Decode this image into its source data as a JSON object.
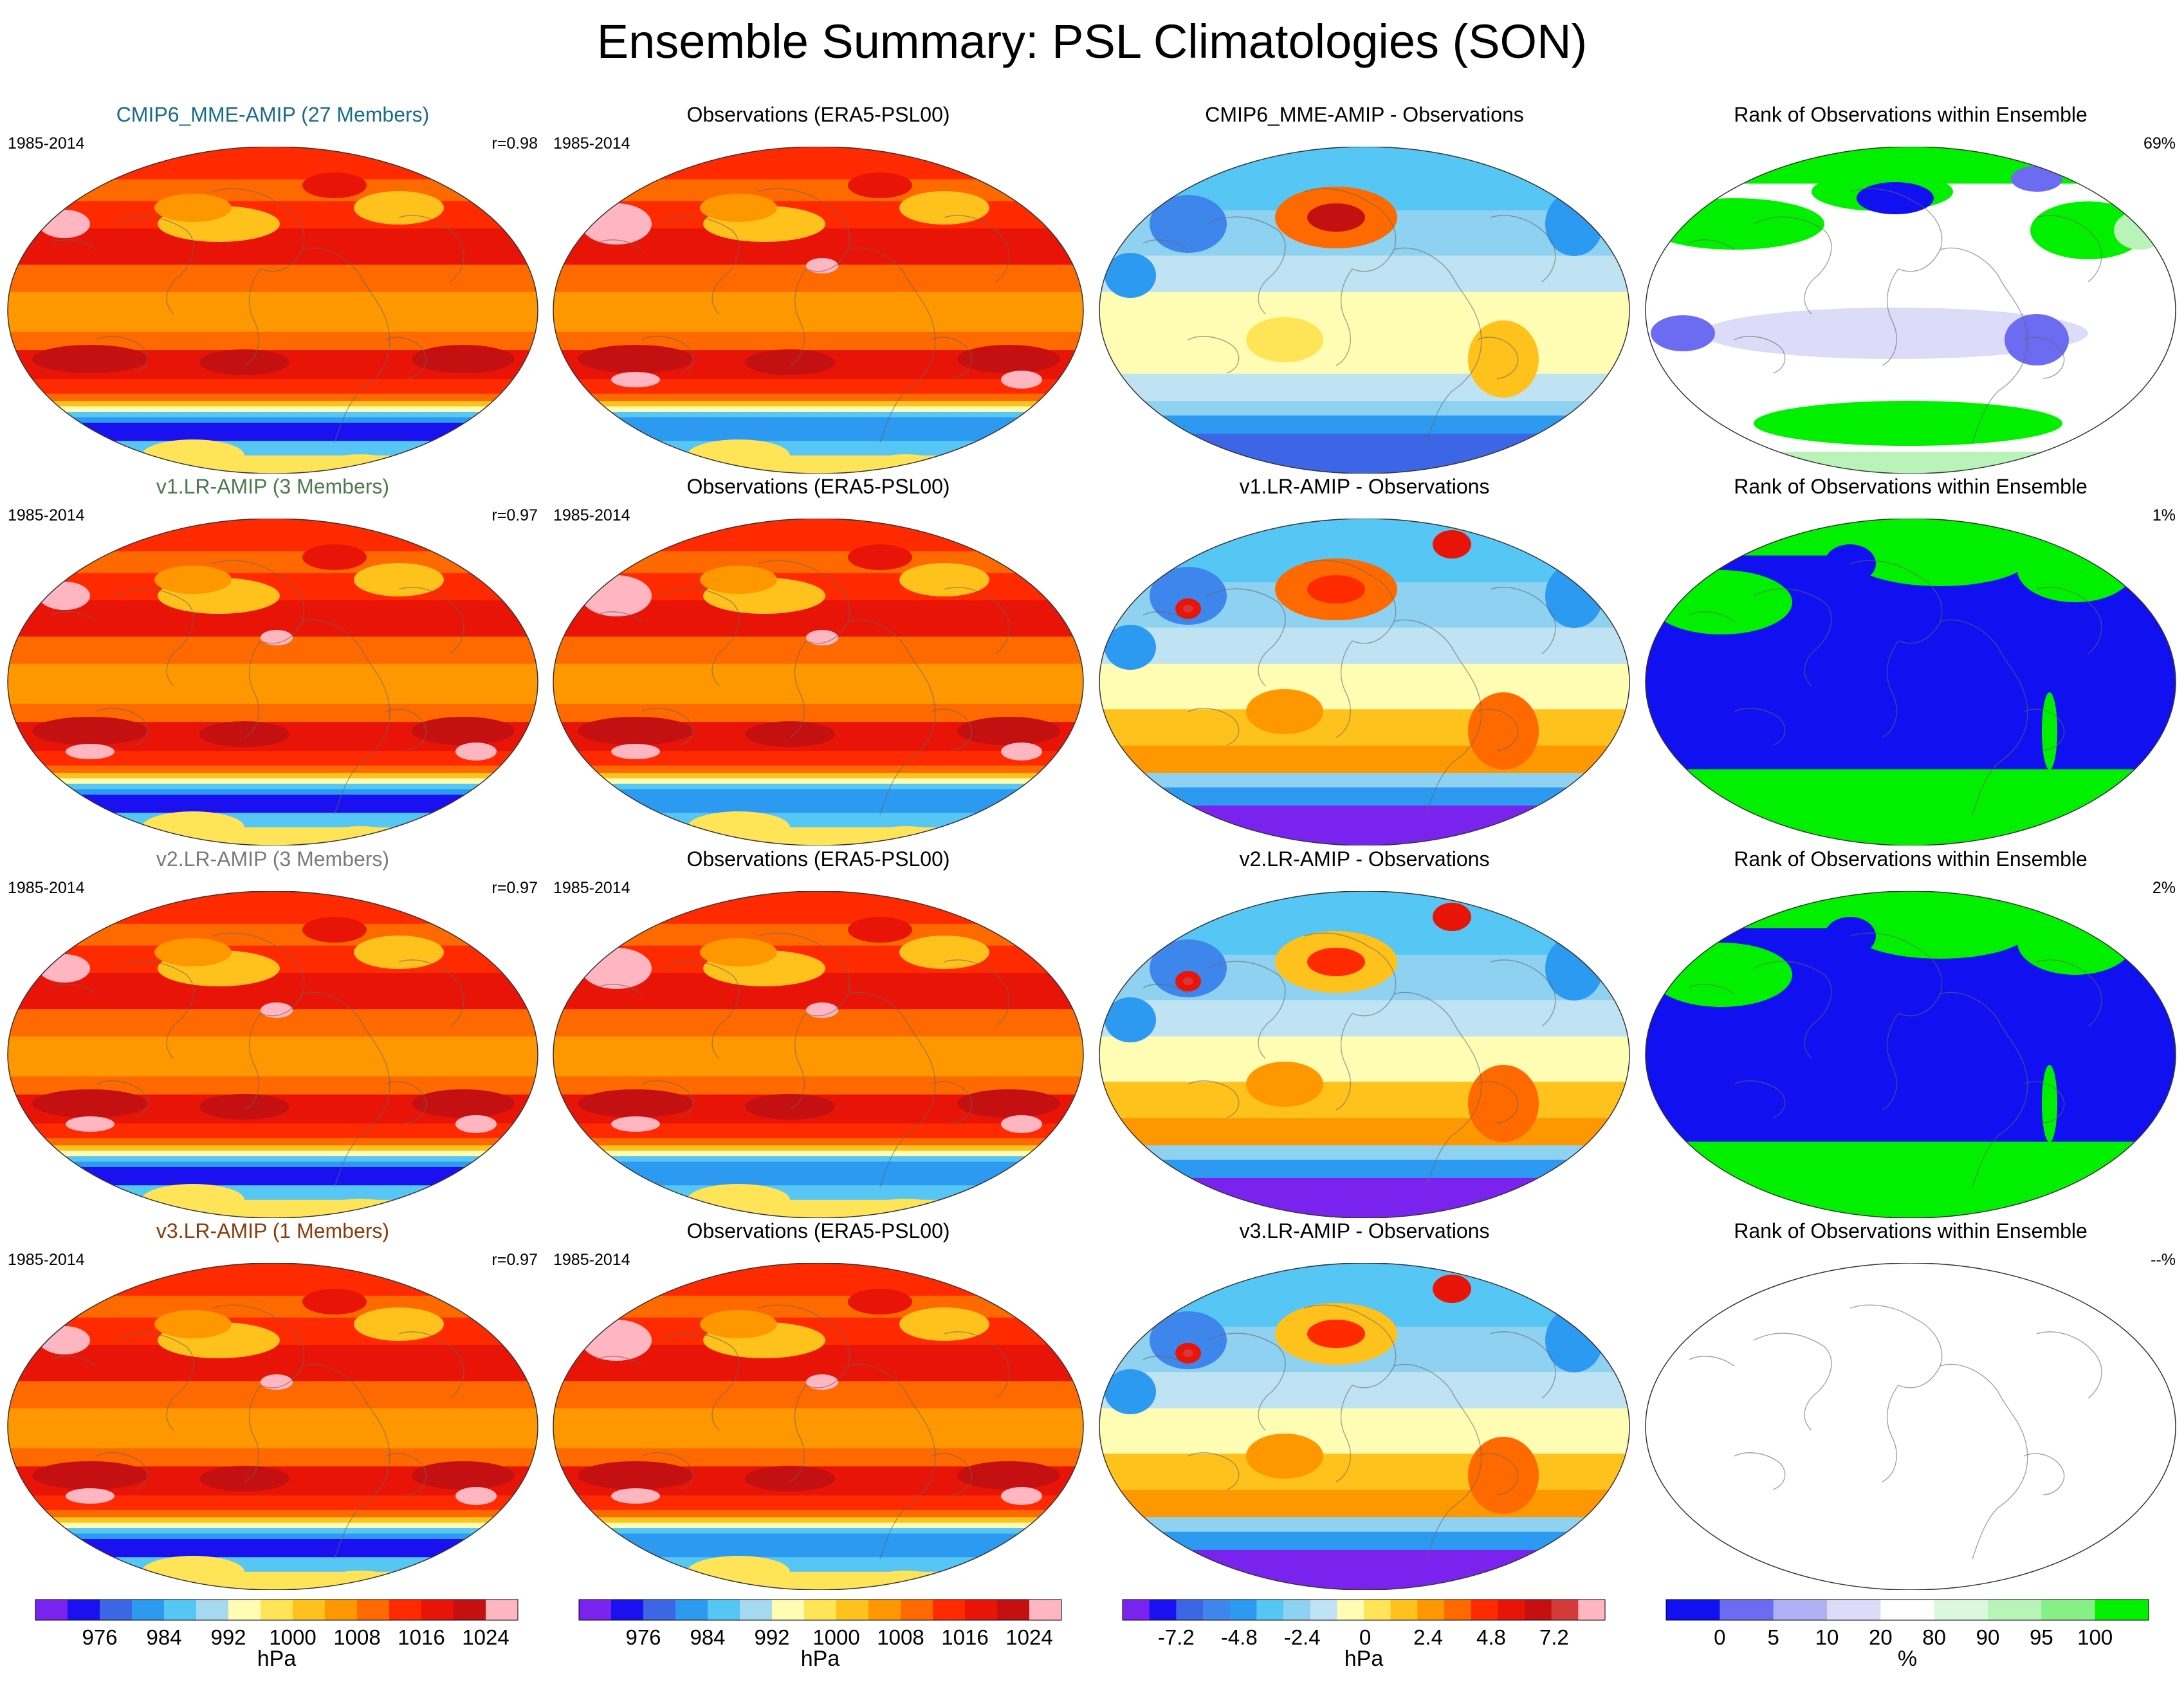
{
  "title": "Ensemble Summary: PSL Climatologies (SON)",
  "colors": {
    "psl": [
      "#7a22ee",
      "#1a10f0",
      "#3c66e6",
      "#2b9af0",
      "#56c6f5",
      "#a6d8ef",
      "#fffcb4",
      "#ffe457",
      "#ffc21c",
      "#ff9800",
      "#ff6a00",
      "#ff2a00",
      "#e81408",
      "#c41010",
      "#ffb6c1"
    ],
    "diff": [
      "#7a22ee",
      "#1a10f0",
      "#3c66e6",
      "#3f86ec",
      "#2b9af0",
      "#56c6f5",
      "#8fd1f0",
      "#bfe3f3",
      "#fffcb4",
      "#ffe457",
      "#ffc21c",
      "#ff9800",
      "#ff6a00",
      "#ff2a00",
      "#e81408",
      "#c41010",
      "#d43a3a",
      "#ffb6c1"
    ],
    "rank": [
      "#1010f0",
      "#6c6cf2",
      "#b0b0f4",
      "#dcdcf8",
      "#ffffff",
      "#dcf8dc",
      "#b8f4b8",
      "#86f086",
      "#00f000"
    ]
  },
  "rows": [
    {
      "model": {
        "title": "CMIP6_MME-AMIP (27 Members)",
        "title_color": "#1a6b8a",
        "period": "1985-2014",
        "corr": "r=0.98"
      },
      "obs": {
        "title": "Observations (ERA5-PSL00)",
        "period": "1985-2014"
      },
      "diff": {
        "title": "CMIP6_MME-AMIP - Observations"
      },
      "rank": {
        "title": "Rank of Observations within Ensemble",
        "pct": "69%",
        "fill": "mixed"
      }
    },
    {
      "model": {
        "title": "v1.LR-AMIP (3 Members)",
        "title_color": "#4c7a4c",
        "period": "1985-2014",
        "corr": "r=0.97"
      },
      "obs": {
        "title": "Observations (ERA5-PSL00)",
        "period": "1985-2014"
      },
      "diff": {
        "title": "v1.LR-AMIP - Observations"
      },
      "rank": {
        "title": "Rank of Observations within Ensemble",
        "pct": "1%",
        "fill": "blue-green"
      }
    },
    {
      "model": {
        "title": "v2.LR-AMIP (3 Members)",
        "title_color": "#7a7a7a",
        "period": "1985-2014",
        "corr": "r=0.97"
      },
      "obs": {
        "title": "Observations (ERA5-PSL00)",
        "period": "1985-2014"
      },
      "diff": {
        "title": "v2.LR-AMIP - Observations"
      },
      "rank": {
        "title": "Rank of Observations within Ensemble",
        "pct": "2%",
        "fill": "blue-green"
      }
    },
    {
      "model": {
        "title": "v3.LR-AMIP (1 Members)",
        "title_color": "#8b3a0a",
        "period": "1985-2014",
        "corr": "r=0.97"
      },
      "obs": {
        "title": "Observations (ERA5-PSL00)",
        "period": "1985-2014"
      },
      "diff": {
        "title": "v3.LR-AMIP - Observations"
      },
      "rank": {
        "title": "Rank of Observations within Ensemble",
        "pct": "--%",
        "fill": "empty"
      }
    }
  ],
  "colorbars": [
    {
      "id": "psl-model",
      "unit": "hPa",
      "ticks": [
        "976",
        "984",
        "992",
        "1000",
        "1008",
        "1016",
        "1024"
      ],
      "palette": "psl"
    },
    {
      "id": "psl-obs",
      "unit": "hPa",
      "ticks": [
        "976",
        "984",
        "992",
        "1000",
        "1008",
        "1016",
        "1024"
      ],
      "palette": "psl"
    },
    {
      "id": "diff",
      "unit": "hPa",
      "ticks": [
        "-7.2",
        "-4.8",
        "-2.4",
        "0",
        "2.4",
        "4.8",
        "7.2"
      ],
      "palette": "diff"
    },
    {
      "id": "rank",
      "unit": "%",
      "ticks": [
        "0",
        "5",
        "10",
        "20",
        "80",
        "90",
        "95",
        "100"
      ],
      "palette": "rank"
    }
  ]
}
